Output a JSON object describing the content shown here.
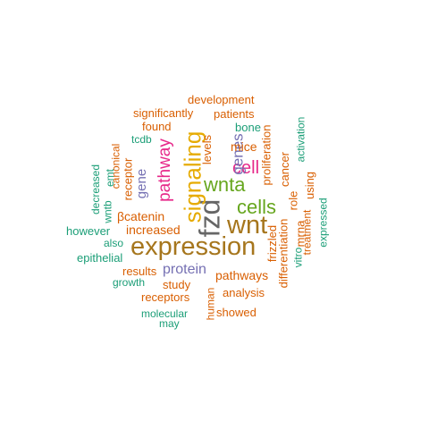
{
  "colors": {
    "orange": "#d95f02",
    "teal": "#1b9e77",
    "purple": "#7570b3",
    "magenta": "#e7298a",
    "green": "#66a61e",
    "gold": "#e6ab02",
    "brown": "#a6761d",
    "gray": "#666666"
  },
  "words": [
    {
      "text": "expression",
      "color": "#a6761d"
    },
    {
      "text": "fzd",
      "color": "#666666"
    },
    {
      "text": "wnt",
      "color": "#a6761d"
    },
    {
      "text": "signaling",
      "color": "#e6ab02"
    },
    {
      "text": "cells",
      "color": "#66a61e"
    },
    {
      "text": "wnta",
      "color": "#66a61e"
    },
    {
      "text": "cell",
      "color": "#e7298a"
    },
    {
      "text": "pathway",
      "color": "#e7298a"
    },
    {
      "text": "genes",
      "color": "#7570b3"
    },
    {
      "text": "gene",
      "color": "#7570b3"
    },
    {
      "text": "protein",
      "color": "#7570b3"
    },
    {
      "text": "pathways",
      "color": "#d95f02"
    },
    {
      "text": "increased",
      "color": "#d95f02"
    },
    {
      "text": "βcatenin",
      "color": "#d95f02"
    },
    {
      "text": "development",
      "color": "#d95f02"
    },
    {
      "text": "significantly",
      "color": "#d95f02"
    },
    {
      "text": "patients",
      "color": "#d95f02"
    },
    {
      "text": "found",
      "color": "#d95f02"
    },
    {
      "text": "bone",
      "color": "#1b9e77"
    },
    {
      "text": "tcdb",
      "color": "#1b9e77"
    },
    {
      "text": "levels",
      "color": "#d95f02"
    },
    {
      "text": "mice",
      "color": "#d95f02"
    },
    {
      "text": "proliferation",
      "color": "#d95f02"
    },
    {
      "text": "cancer",
      "color": "#d95f02"
    },
    {
      "text": "activation",
      "color": "#1b9e77"
    },
    {
      "text": "canonical",
      "color": "#d95f02"
    },
    {
      "text": "receptor",
      "color": "#d95f02"
    },
    {
      "text": "emt",
      "color": "#1b9e77"
    },
    {
      "text": "decreased",
      "color": "#1b9e77"
    },
    {
      "text": "wntb",
      "color": "#1b9e77"
    },
    {
      "text": "however",
      "color": "#1b9e77"
    },
    {
      "text": "also",
      "color": "#1b9e77"
    },
    {
      "text": "epithelial",
      "color": "#1b9e77"
    },
    {
      "text": "results",
      "color": "#d95f02"
    },
    {
      "text": "growth",
      "color": "#1b9e77"
    },
    {
      "text": "study",
      "color": "#d95f02"
    },
    {
      "text": "receptors",
      "color": "#d95f02"
    },
    {
      "text": "analysis",
      "color": "#d95f02"
    },
    {
      "text": "molecular",
      "color": "#1b9e77"
    },
    {
      "text": "may",
      "color": "#1b9e77"
    },
    {
      "text": "human",
      "color": "#d95f02"
    },
    {
      "text": "showed",
      "color": "#d95f02"
    },
    {
      "text": "frizzled",
      "color": "#d95f02"
    },
    {
      "text": "differentiation",
      "color": "#d95f02"
    },
    {
      "text": "role",
      "color": "#d95f02"
    },
    {
      "text": "vitro",
      "color": "#1b9e77"
    },
    {
      "text": "mrna",
      "color": "#d95f02"
    },
    {
      "text": "using",
      "color": "#d95f02"
    },
    {
      "text": "treatment",
      "color": "#d95f02"
    },
    {
      "text": "expressed",
      "color": "#1b9e77"
    }
  ]
}
